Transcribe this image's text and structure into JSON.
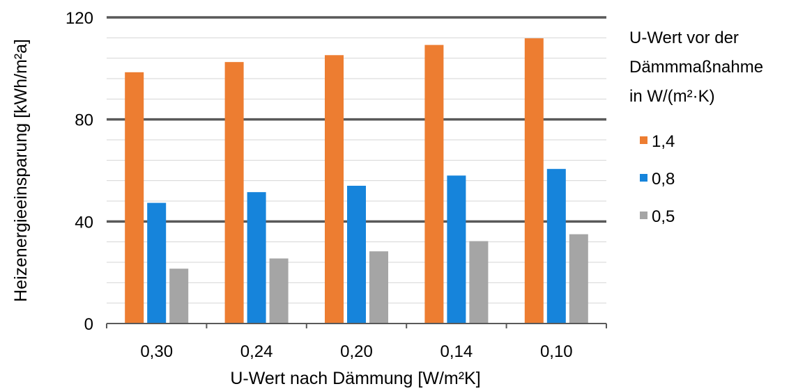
{
  "chart_data": {
    "type": "bar",
    "categories": [
      "0,30",
      "0,24",
      "0,20",
      "0,14",
      "0,10"
    ],
    "series": [
      {
        "name": "1,4",
        "color": "#ED7D31",
        "values": [
          98.5,
          102.5,
          105.2,
          109.2,
          111.8
        ]
      },
      {
        "name": "0,8",
        "color": "#1684DB",
        "values": [
          47.3,
          51.5,
          54.0,
          58.0,
          60.6
        ]
      },
      {
        "name": "0,5",
        "color": "#A5A5A5",
        "values": [
          21.5,
          25.5,
          28.3,
          32.3,
          35.0
        ]
      }
    ],
    "xlabel": "U-Wert nach Dämmung [W/m²K]",
    "ylabel": "Heizenergieeinsparung [kWh/m²a]",
    "ylim": [
      0,
      120
    ],
    "yticks": [
      "0",
      "40",
      "80",
      "120"
    ],
    "major_gridlines": [
      40,
      80,
      120
    ],
    "minor_gridlines": [
      8,
      16,
      24,
      32,
      48,
      56,
      64,
      72,
      88,
      96,
      104,
      112
    ],
    "legend": {
      "position": "right",
      "title_lines": [
        "U-Wert vor der",
        "Dämmmaßnahme",
        "in W/(m²·K)"
      ]
    }
  }
}
